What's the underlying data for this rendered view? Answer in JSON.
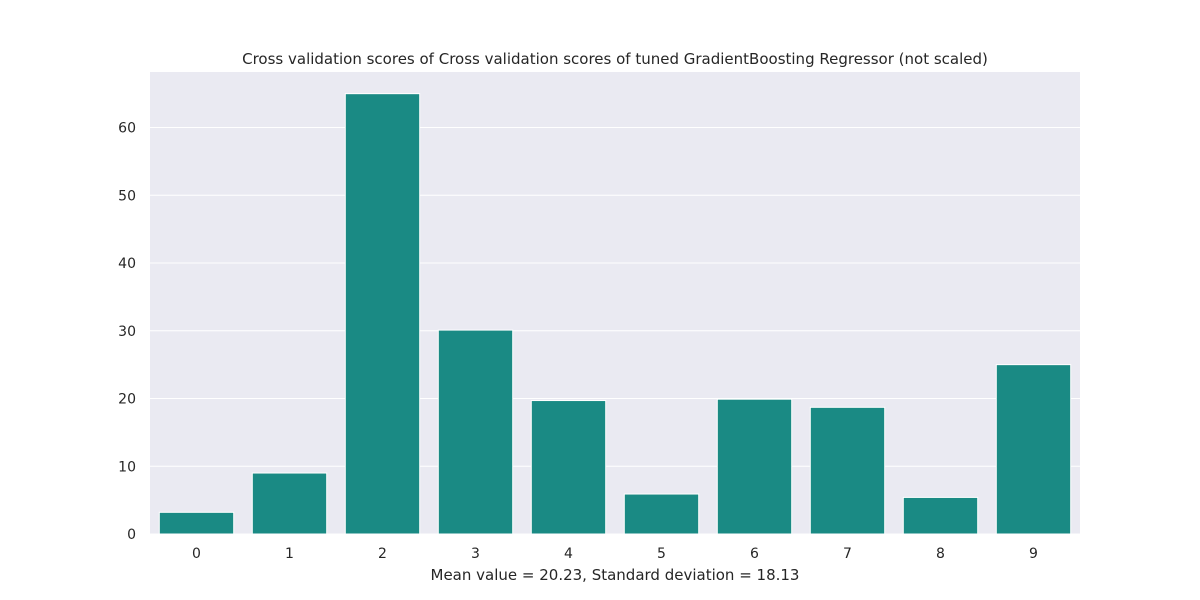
{
  "chart_data": {
    "type": "bar",
    "title": "Cross validation scores of Cross validation scores of tuned GradientBoosting Regressor (not scaled)",
    "xlabel": "Mean value = 20.23, Standard deviation = 18.13",
    "ylabel": "",
    "categories": [
      "0",
      "1",
      "2",
      "3",
      "4",
      "5",
      "6",
      "7",
      "8",
      "9"
    ],
    "values": [
      3.2,
      9.0,
      65.0,
      30.1,
      19.7,
      5.9,
      19.9,
      18.7,
      5.4,
      25.0
    ],
    "ylim": [
      0,
      68.2
    ],
    "yticks": [
      0,
      10,
      20,
      30,
      40,
      50,
      60
    ],
    "grid": true,
    "colors": {
      "bar": "#1a8a84",
      "plot_background": "#eaeaf2",
      "grid": "#ffffff",
      "text": "#262626"
    }
  }
}
